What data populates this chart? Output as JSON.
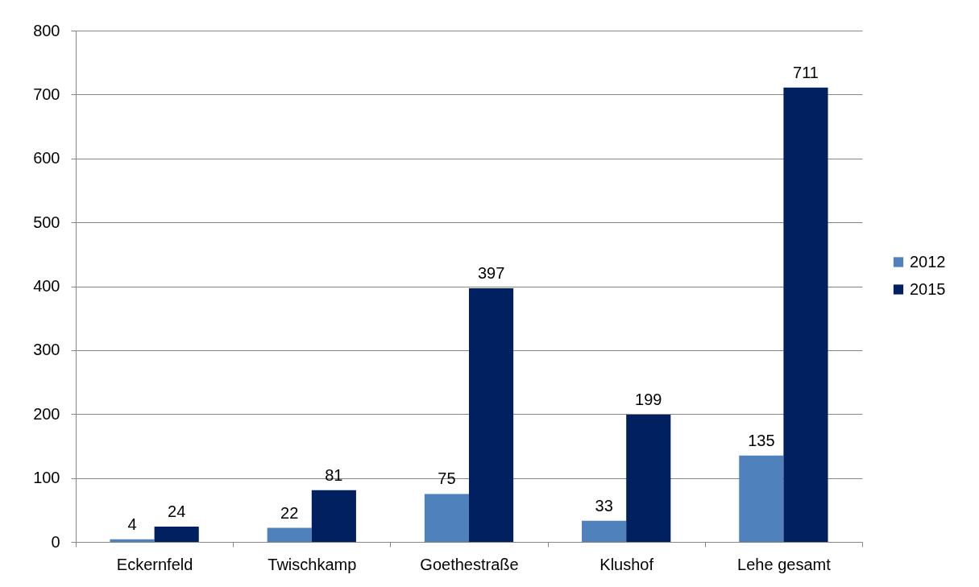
{
  "chart_data": {
    "type": "bar",
    "categories": [
      "Eckernfeld",
      "Twischkamp",
      "Goethestraße",
      "Klushof",
      "Lehe gesamt"
    ],
    "series": [
      {
        "name": "2012",
        "color": "#4f81bd",
        "values": [
          4,
          22,
          75,
          33,
          135
        ]
      },
      {
        "name": "2015",
        "color": "#002060",
        "values": [
          24,
          81,
          397,
          199,
          711
        ]
      }
    ],
    "ylim": [
      0,
      800
    ],
    "yticks": [
      0,
      100,
      200,
      300,
      400,
      500,
      600,
      700,
      800
    ],
    "grid": "y",
    "legend": "right",
    "data_labels": true
  }
}
